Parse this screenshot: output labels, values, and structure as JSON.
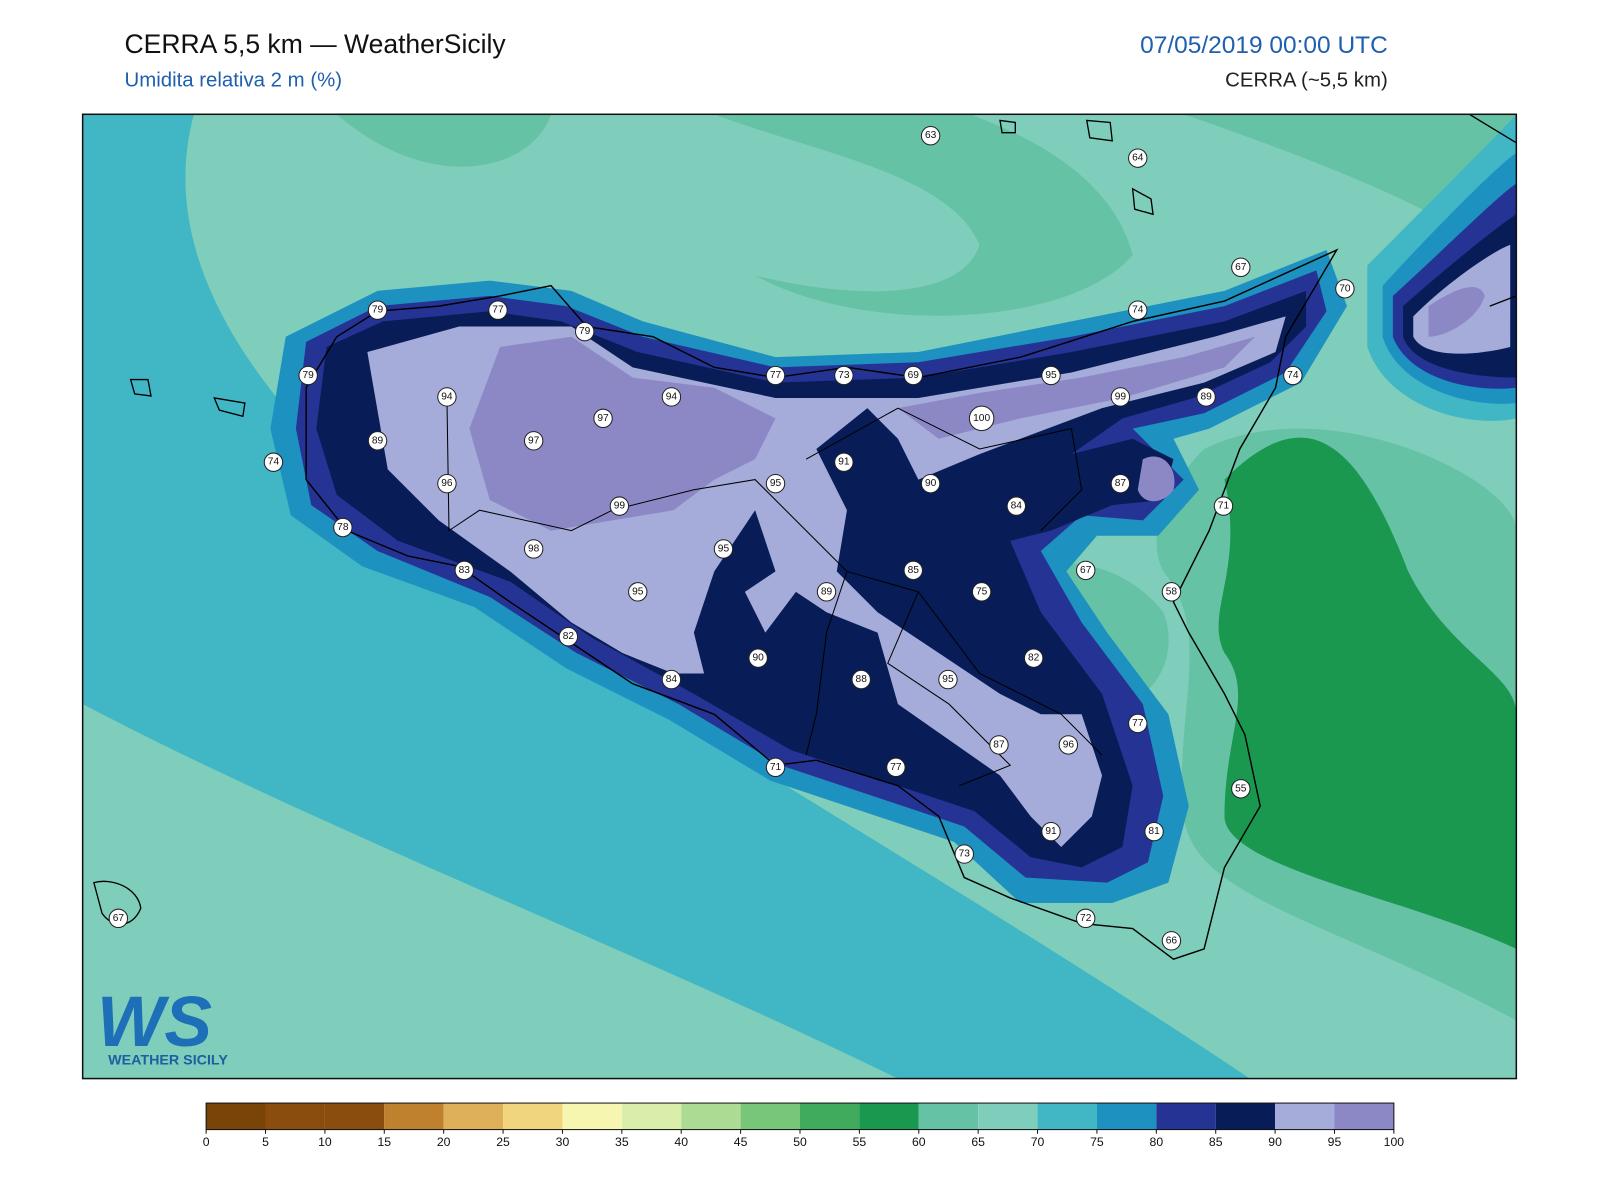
{
  "header": {
    "title": "CERRA 5,5 km — WeatherSicily",
    "subtitle": "Umidita relativa 2 m (%)",
    "datetime": "07/05/2019 00:00 UTC",
    "model": "CERRA (~5,5 km)"
  },
  "stations": [
    63,
    64,
    67,
    70,
    79,
    77,
    79,
    74,
    79,
    94,
    94,
    77,
    73,
    69,
    95,
    99,
    89,
    74,
    97,
    100,
    89,
    97,
    91,
    74,
    96,
    95,
    90,
    87,
    99,
    84,
    71,
    78,
    98,
    95,
    83,
    85,
    67,
    95,
    89,
    75,
    58,
    82,
    90,
    82,
    84,
    88,
    95,
    77,
    87,
    96,
    71,
    77,
    55,
    91,
    81,
    73,
    67,
    72,
    66
  ],
  "colorbar": {
    "ticks": [
      0,
      5,
      10,
      15,
      20,
      25,
      30,
      35,
      40,
      45,
      50,
      55,
      60,
      65,
      70,
      75,
      80,
      85,
      90,
      95,
      100
    ],
    "colors": [
      "#7a4307",
      "#8a4d0e",
      "#8a4d0e",
      "#c0812e",
      "#dfb05a",
      "#f0d57e",
      "#f6f6b0",
      "#d8eeaa",
      "#acdc94",
      "#78c679",
      "#41ab5d",
      "#1a9850",
      "#66c2a4",
      "#7fcdbb",
      "#41b6c4",
      "#1d91c0",
      "#253494",
      "#081d58",
      "#a5acd9",
      "#8c88c6"
    ]
  },
  "logo": {
    "mark": "WS",
    "text": "WEATHER SICILY"
  }
}
